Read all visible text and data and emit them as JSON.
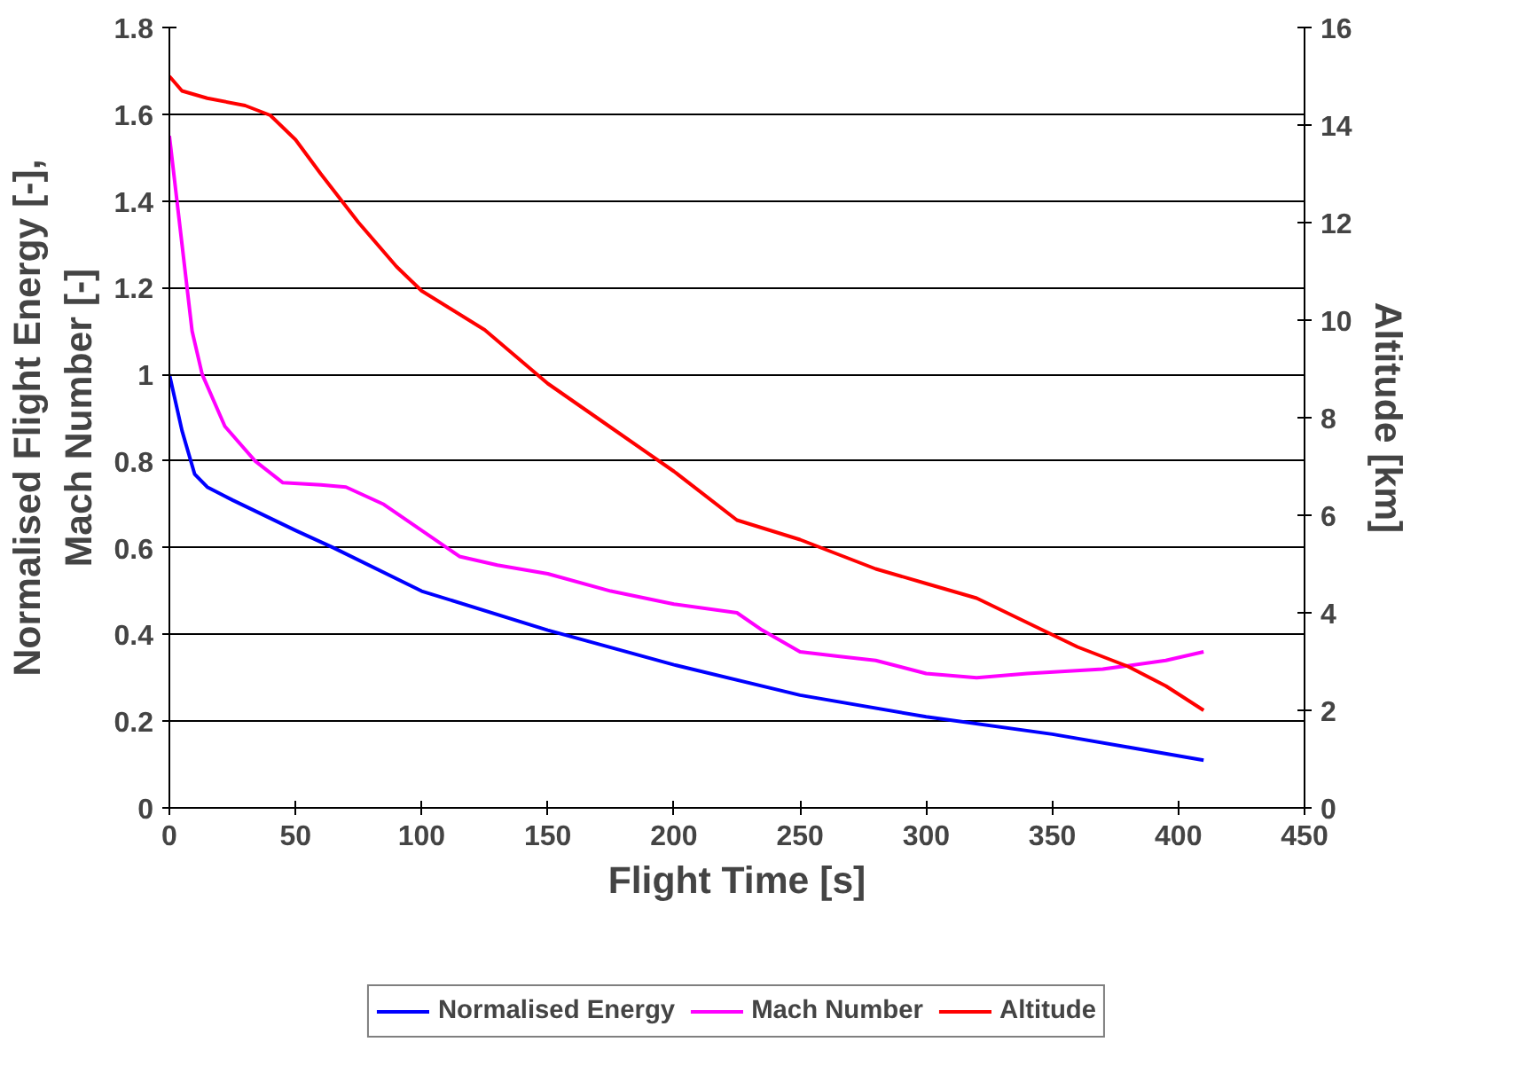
{
  "chart_data": {
    "type": "line",
    "xlabel": "Flight Time [s]",
    "ylabel": "Normalised Flight Energy [-],\nMach Number [-]",
    "y2label": "Altitude [km]",
    "xlim": [
      0,
      450
    ],
    "xticks": [
      0,
      50,
      100,
      150,
      200,
      250,
      300,
      350,
      400,
      450
    ],
    "ylim": [
      0,
      1.8
    ],
    "yticks": [
      0,
      0.2,
      0.4,
      0.6,
      0.8,
      1,
      1.2,
      1.4,
      1.6,
      1.8
    ],
    "y2lim": [
      0,
      16
    ],
    "y2ticks": [
      0,
      2,
      4,
      6,
      8,
      10,
      12,
      14,
      16
    ],
    "grid": "y",
    "legend": "bottom",
    "marker": "none",
    "line_style": "solid",
    "series": [
      {
        "name": "Normalised Energy",
        "color": "#0000ff",
        "x": [
          0,
          5,
          10,
          15,
          25,
          50,
          65,
          100,
          150,
          200,
          250,
          300,
          350,
          380,
          410
        ],
        "values": [
          1.0,
          0.87,
          0.77,
          0.74,
          0.71,
          0.64,
          0.6,
          0.5,
          0.41,
          0.33,
          0.26,
          0.21,
          0.17,
          0.14,
          0.11
        ]
      },
      {
        "name": "Mach Number",
        "color": "#ff00ff",
        "x": [
          0,
          5,
          9,
          13,
          22,
          34,
          45,
          60,
          70,
          85,
          100,
          115,
          130,
          150,
          175,
          200,
          225,
          235,
          250,
          265,
          280,
          300,
          320,
          340,
          370,
          395,
          410
        ],
        "values": [
          1.55,
          1.3,
          1.1,
          1.0,
          0.88,
          0.8,
          0.75,
          0.745,
          0.74,
          0.7,
          0.64,
          0.58,
          0.56,
          0.54,
          0.5,
          0.47,
          0.45,
          0.41,
          0.36,
          0.35,
          0.34,
          0.31,
          0.3,
          0.31,
          0.32,
          0.34,
          0.36
        ]
      },
      {
        "name": "Altitude",
        "color": "#ff0000",
        "axis": "y2",
        "x": [
          0,
          5,
          15,
          30,
          40,
          50,
          60,
          75,
          90,
          100,
          125,
          150,
          175,
          200,
          225,
          250,
          265,
          280,
          300,
          320,
          340,
          360,
          380,
          395,
          410
        ],
        "values": [
          15.0,
          14.7,
          14.55,
          14.4,
          14.2,
          13.7,
          13.0,
          12.0,
          11.1,
          10.6,
          9.8,
          8.7,
          7.8,
          6.9,
          5.9,
          5.5,
          5.2,
          4.9,
          4.6,
          4.3,
          3.8,
          3.3,
          2.9,
          2.5,
          2.0
        ]
      }
    ]
  }
}
